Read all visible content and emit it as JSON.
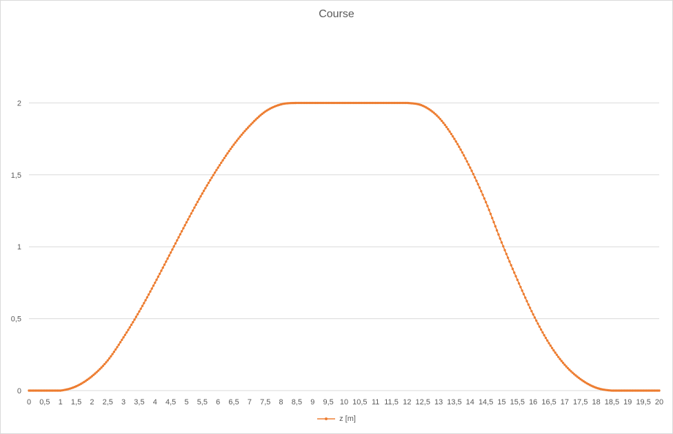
{
  "chart_data": {
    "type": "line",
    "title": "Course",
    "xlabel": "",
    "ylabel": "",
    "series": [
      {
        "name": "z [m]",
        "color": "#ED7D31",
        "x": [
          0,
          0.5,
          1,
          1.5,
          2,
          2.5,
          3,
          3.5,
          4,
          4.5,
          5,
          5.5,
          6,
          6.5,
          7,
          7.5,
          8,
          8.5,
          9,
          9.5,
          10,
          10.5,
          11,
          11.5,
          12,
          12.5,
          13,
          13.5,
          14,
          14.5,
          15,
          15.5,
          16,
          16.5,
          17,
          17.5,
          18,
          18.5,
          19,
          19.5,
          20
        ],
        "y": [
          0,
          0,
          0,
          0.03,
          0.1,
          0.21,
          0.37,
          0.55,
          0.75,
          0.96,
          1.17,
          1.37,
          1.55,
          1.71,
          1.84,
          1.94,
          1.99,
          2,
          2,
          2,
          2,
          2,
          2,
          2,
          2,
          1.98,
          1.9,
          1.75,
          1.55,
          1.31,
          1.03,
          0.77,
          0.53,
          0.33,
          0.18,
          0.08,
          0.02,
          0,
          0,
          0,
          0
        ]
      }
    ],
    "x_tick_labels": [
      "0",
      "0,5",
      "1",
      "1,5",
      "2",
      "2,5",
      "3",
      "3,5",
      "4",
      "4,5",
      "5",
      "5,5",
      "6",
      "6,5",
      "7",
      "7,5",
      "8",
      "8,5",
      "9",
      "9,5",
      "10",
      "10,5",
      "11",
      "11,5",
      "12",
      "12,5",
      "13",
      "13,5",
      "14",
      "14,5",
      "15",
      "15,5",
      "16",
      "16,5",
      "17",
      "17,5",
      "18",
      "18,5",
      "19",
      "19,5",
      "20"
    ],
    "y_tick_labels": [
      "0",
      "0,5",
      "1",
      "1,5",
      "2"
    ],
    "y_ticks": [
      0,
      0.5,
      1,
      1.5,
      2
    ],
    "xlim": [
      0,
      20
    ],
    "ylim": [
      0,
      2.5
    ],
    "grid": "horizontal",
    "legend_position": "bottom",
    "markers": "small-dots"
  }
}
